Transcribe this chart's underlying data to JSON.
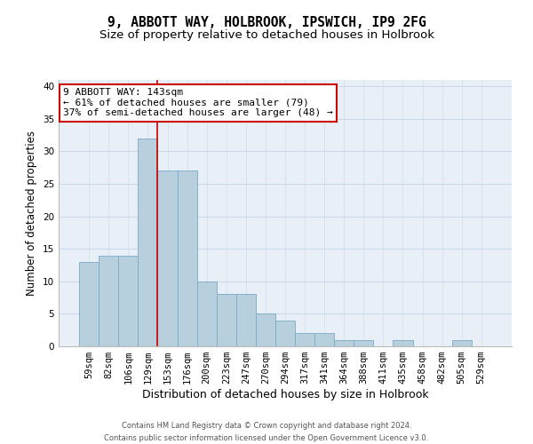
{
  "title1": "9, ABBOTT WAY, HOLBROOK, IPSWICH, IP9 2FG",
  "title2": "Size of property relative to detached houses in Holbrook",
  "xlabel": "Distribution of detached houses by size in Holbrook",
  "ylabel": "Number of detached properties",
  "categories": [
    "59sqm",
    "82sqm",
    "106sqm",
    "129sqm",
    "153sqm",
    "176sqm",
    "200sqm",
    "223sqm",
    "247sqm",
    "270sqm",
    "294sqm",
    "317sqm",
    "341sqm",
    "364sqm",
    "388sqm",
    "411sqm",
    "435sqm",
    "458sqm",
    "482sqm",
    "505sqm",
    "529sqm"
  ],
  "values": [
    13,
    14,
    14,
    32,
    27,
    27,
    10,
    8,
    8,
    5,
    4,
    2,
    2,
    1,
    1,
    0,
    1,
    0,
    0,
    1,
    0
  ],
  "bar_color": "#b8cfde",
  "bar_edge_color": "#7aaac8",
  "annotation_line1": "9 ABBOTT WAY: 143sqm",
  "annotation_line2": "← 61% of detached houses are smaller (79)",
  "annotation_line3": "37% of semi-detached houses are larger (48) →",
  "annotation_box_color": "#ffffff",
  "annotation_box_edge_color": "#cc0000",
  "ref_line_color": "#cc0000",
  "ref_line_x": 3.5,
  "ylim": [
    0,
    41
  ],
  "yticks": [
    0,
    5,
    10,
    15,
    20,
    25,
    30,
    35,
    40
  ],
  "grid_color": "#c8d8e8",
  "background_color": "#e8eff6",
  "footer_line1": "Contains HM Land Registry data © Crown copyright and database right 2024.",
  "footer_line2": "Contains public sector information licensed under the Open Government Licence v3.0.",
  "title1_fontsize": 10.5,
  "title2_fontsize": 9.5,
  "xlabel_fontsize": 9,
  "ylabel_fontsize": 8.5,
  "tick_fontsize": 7.5,
  "annotation_fontsize": 8,
  "footer_fontsize": 6
}
